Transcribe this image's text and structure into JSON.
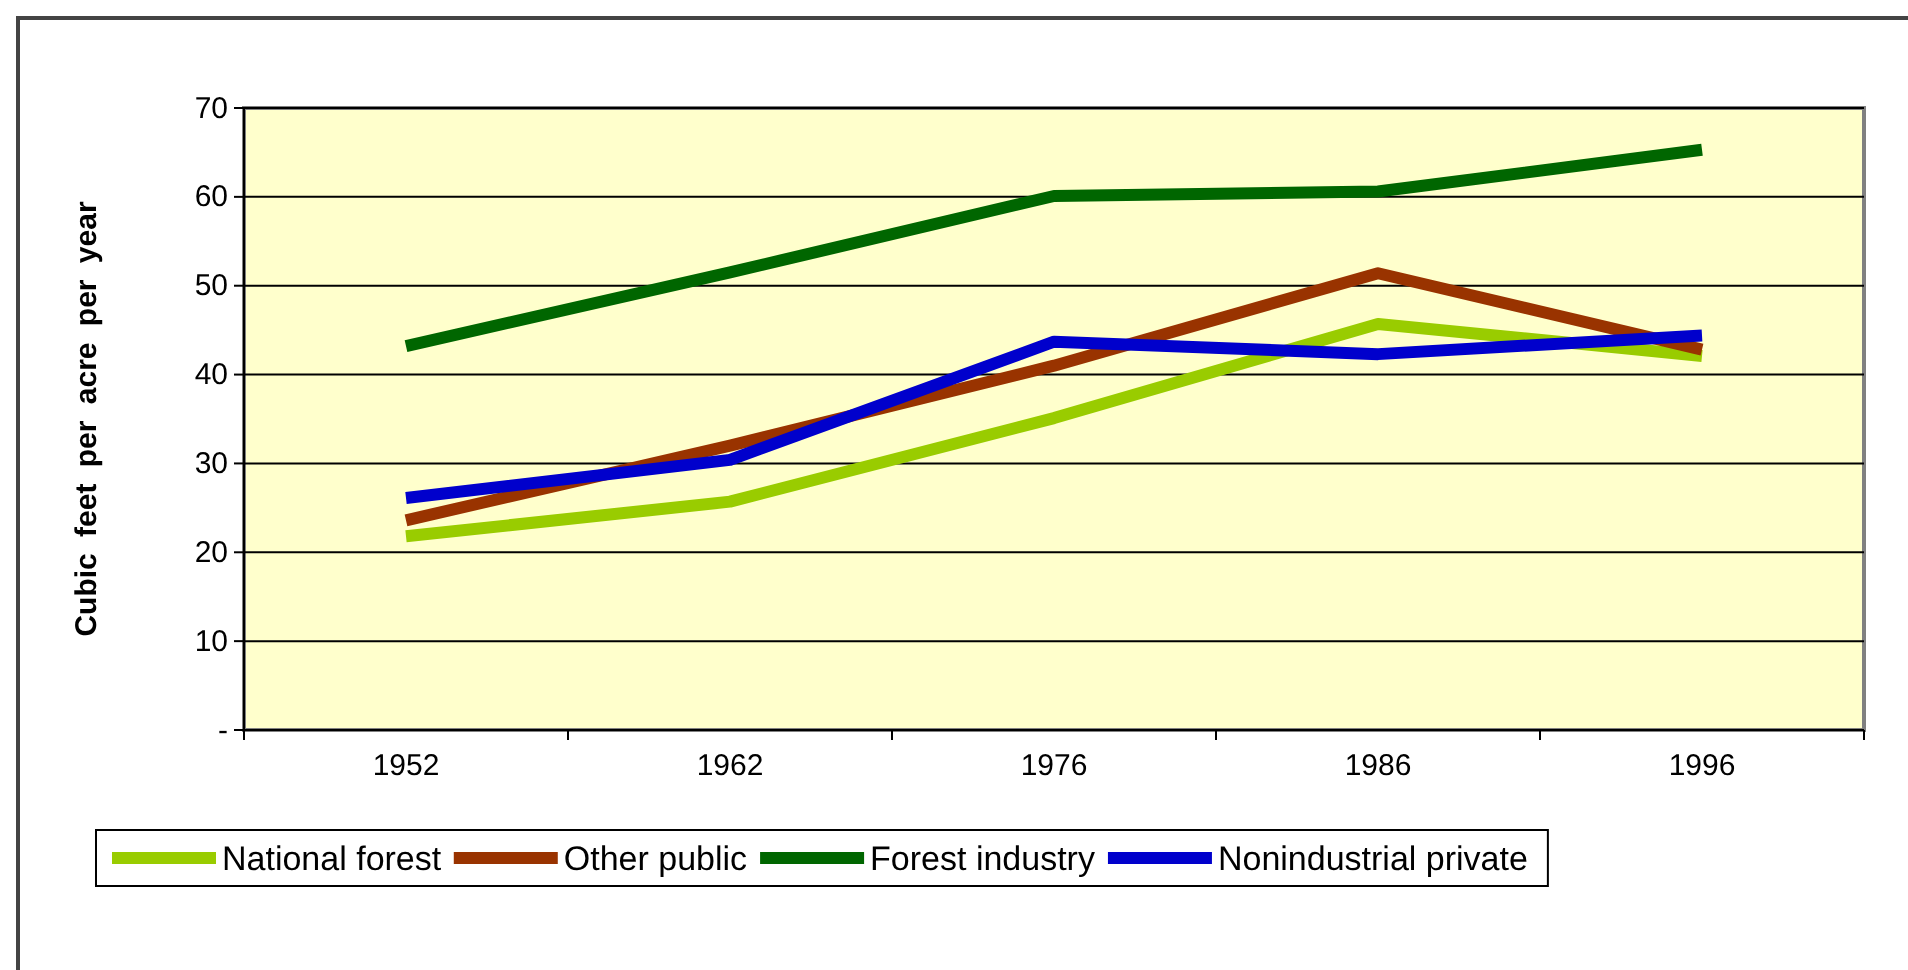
{
  "chart_data": {
    "type": "line",
    "ylabel": "Cubic feet per acre per year",
    "categories": [
      "1952",
      "1962",
      "1976",
      "1986",
      "1996"
    ],
    "series": [
      {
        "name": "National forest",
        "color": "#99cc00",
        "values": [
          21.8,
          25.7,
          35.1,
          45.7,
          42.1
        ]
      },
      {
        "name": "Other public",
        "color": "#993300",
        "values": [
          23.6,
          32,
          41,
          51.4,
          42.8
        ]
      },
      {
        "name": "Forest industry",
        "color": "#006600",
        "values": [
          43.2,
          51.5,
          60.1,
          60.6,
          65.3
        ]
      },
      {
        "name": "Nonindustrial private",
        "color": "#0000cc",
        "values": [
          26.1,
          30.4,
          43.7,
          42.3,
          44.4
        ]
      }
    ],
    "ylim": [
      0,
      70
    ],
    "yticks": [
      {
        "value": 0,
        "label": "-"
      },
      10,
      20,
      30,
      40,
      50,
      60,
      70
    ],
    "grid": "y",
    "legend": "bottom",
    "marker": "none",
    "line_style": "solid"
  }
}
